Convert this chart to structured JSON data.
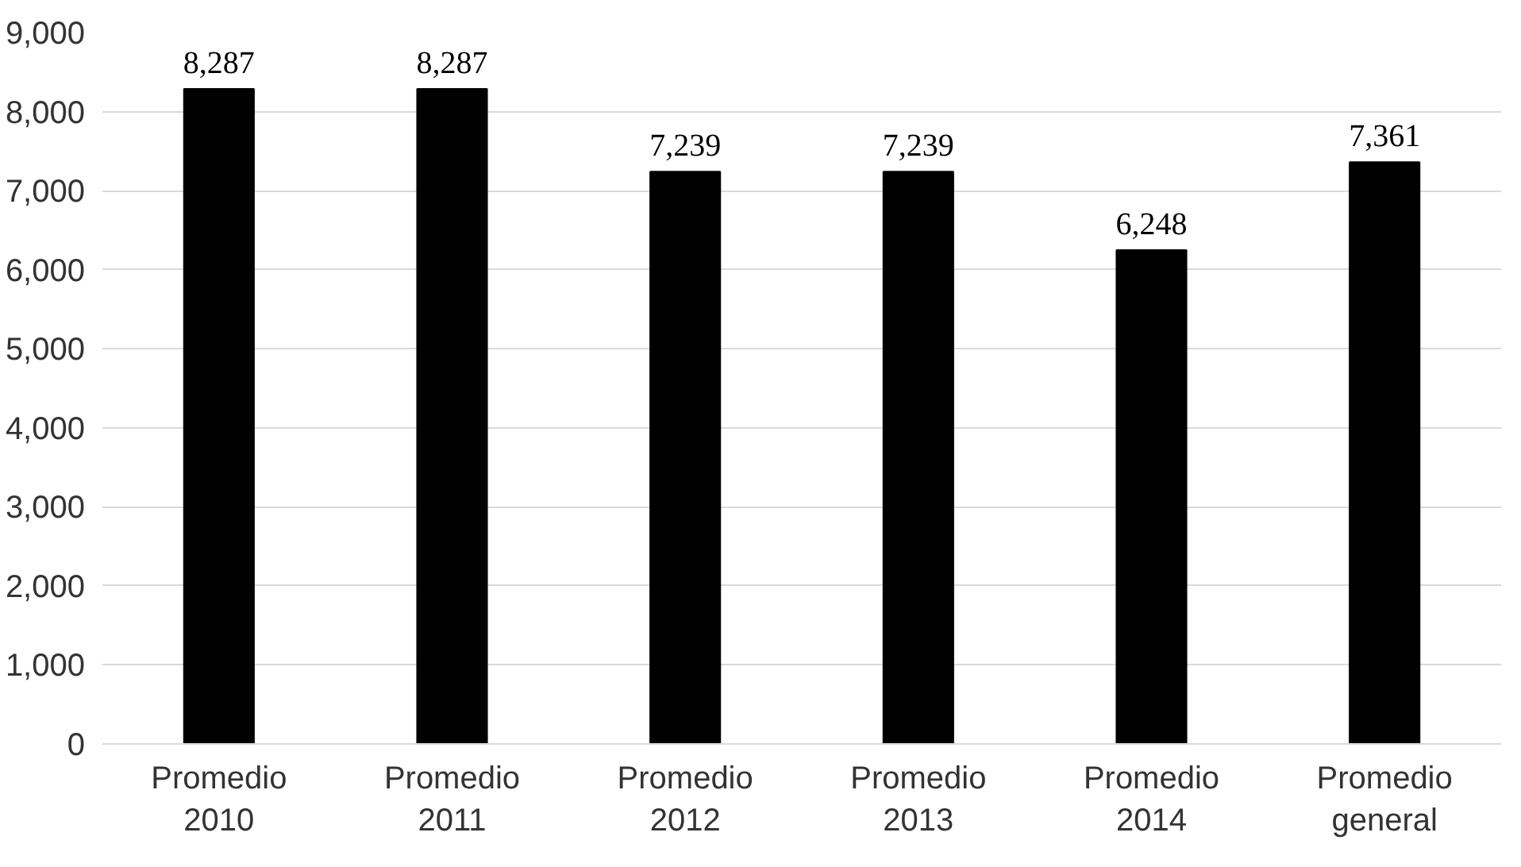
{
  "chart_data": {
    "type": "bar",
    "categories": [
      "Promedio\n2010",
      "Promedio\n2011",
      "Promedio\n2012",
      "Promedio\n2013",
      "Promedio\n2014",
      "Promedio\ngeneral"
    ],
    "values": [
      8287,
      8287,
      7239,
      7239,
      6248,
      7361
    ],
    "value_labels": [
      "8,287",
      "8,287",
      "7,239",
      "7,239",
      "6,248",
      "7,361"
    ],
    "color": "#000000",
    "ylim": [
      0,
      9000
    ],
    "yticks": [
      {
        "value": 0,
        "label": "0"
      },
      {
        "value": 1000,
        "label": "1,000"
      },
      {
        "value": 2000,
        "label": "2,000"
      },
      {
        "value": 3000,
        "label": "3,000"
      },
      {
        "value": 4000,
        "label": "4,000"
      },
      {
        "value": 5000,
        "label": "5,000"
      },
      {
        "value": 6000,
        "label": "6,000"
      },
      {
        "value": 7000,
        "label": "7,000"
      },
      {
        "value": 8000,
        "label": "8,000"
      },
      {
        "value": 9000,
        "label": "9,000"
      }
    ],
    "grid": "y"
  }
}
